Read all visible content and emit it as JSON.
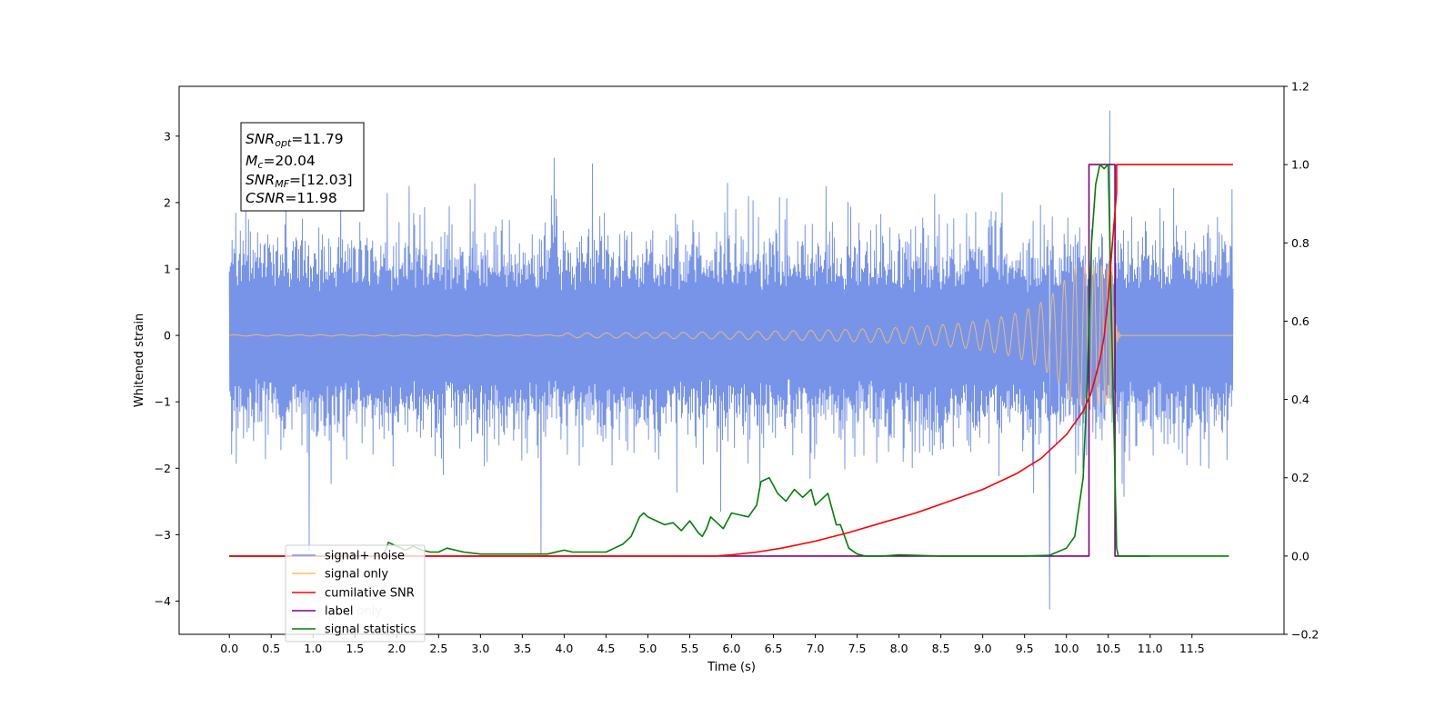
{
  "chart_data": {
    "type": "line",
    "xlabel": "Time (s)",
    "ylabel": "Whitened strain",
    "xlim": [
      -0.6,
      12.6
    ],
    "ylim_left": [
      -4.5,
      3.75
    ],
    "ylim_right": [
      -0.2,
      1.2
    ],
    "x_ticks": [
      0.0,
      0.5,
      1.0,
      1.5,
      2.0,
      2.5,
      3.0,
      3.5,
      4.0,
      4.5,
      5.0,
      5.5,
      6.0,
      6.5,
      7.0,
      7.5,
      8.0,
      8.5,
      9.0,
      9.5,
      10.0,
      10.5,
      11.0,
      11.5
    ],
    "x_tick_labels": [
      "0.0",
      "0.5",
      "1.0",
      "1.5",
      "2.0",
      "2.5",
      "3.0",
      "3.5",
      "4.0",
      "4.5",
      "5.0",
      "5.5",
      "6.0",
      "6.5",
      "7.0",
      "7.5",
      "8.0",
      "8.5",
      "9.0",
      "9.5",
      "10.0",
      "10.5",
      "11.0",
      "11.5"
    ],
    "y_ticks_left": [
      3,
      2,
      1,
      0,
      -1,
      -2,
      -3,
      -4
    ],
    "y_tick_labels_left": [
      "3",
      "2",
      "1",
      "0",
      "−1",
      "−2",
      "−3",
      "−4"
    ],
    "y_ticks_right": [
      1.2,
      1.0,
      0.8,
      0.6,
      0.4,
      0.2,
      0.0,
      -0.2
    ],
    "y_tick_labels_right": [
      "1.2",
      "1.0",
      "0.8",
      "0.6",
      "0.4",
      "0.2",
      "0.0",
      "−0.2"
    ],
    "grid": false,
    "legend_position": "lower-left",
    "annotation": {
      "lines": [
        {
          "main": "SNR",
          "sub": "opt",
          "rest": "=11.79"
        },
        {
          "main": "M",
          "sub": "c",
          "rest": "=20.04"
        },
        {
          "main": "SNR",
          "sub": "MF",
          "rest": "=[12.03]"
        },
        {
          "main": "CSNR",
          "sub": "",
          "rest": "=11.98"
        }
      ]
    },
    "series": [
      {
        "name": "signal+ noise",
        "axis": "left",
        "color": "#7894e8",
        "kind": "noise",
        "x_range": [
          0.0,
          11.99
        ],
        "amplitude_typical": 1.6,
        "max": 3.38,
        "max_at": 10.52,
        "min": -4.12,
        "min_at": 9.8
      },
      {
        "name": "signal only",
        "axis": "left",
        "color": "#ffbf66",
        "kind": "chirp",
        "x_range": [
          0.0,
          11.99
        ],
        "merger_time": 10.55,
        "peak_amplitude": 1.05,
        "ringdown_end": 10.65
      },
      {
        "name": "cumilative SNR",
        "axis": "right",
        "color": "#ff0000",
        "x": [
          0.0,
          5.8,
          6.0,
          6.3,
          6.6,
          7.0,
          7.4,
          7.8,
          8.2,
          8.6,
          9.0,
          9.4,
          9.7,
          10.0,
          10.2,
          10.3,
          10.4,
          10.45,
          10.5,
          10.55,
          10.6,
          10.6,
          11.99
        ],
        "y": [
          0.0,
          0.0,
          0.003,
          0.01,
          0.02,
          0.038,
          0.06,
          0.085,
          0.11,
          0.14,
          0.17,
          0.21,
          0.25,
          0.31,
          0.37,
          0.42,
          0.5,
          0.56,
          0.66,
          0.8,
          0.93,
          1.0,
          1.0
        ]
      },
      {
        "name": "label",
        "axis": "right",
        "color": "#800080",
        "x": [
          0.0,
          10.27,
          10.27,
          10.58,
          10.58,
          11.0
        ],
        "y": [
          0.0,
          0.0,
          1.0,
          1.0,
          0.0,
          0.0
        ]
      },
      {
        "name": "label only",
        "axis": "right",
        "color": "#800080",
        "hidden_in_plot": true
      },
      {
        "name": "signal statistics",
        "axis": "right",
        "color": "#008000",
        "x": [
          0.0,
          1.8,
          1.85,
          1.9,
          2.0,
          2.1,
          2.2,
          2.3,
          2.4,
          2.5,
          2.6,
          2.7,
          2.8,
          3.0,
          3.2,
          3.4,
          3.6,
          3.8,
          4.0,
          4.1,
          4.2,
          4.3,
          4.5,
          4.6,
          4.7,
          4.8,
          4.9,
          4.95,
          5.0,
          5.1,
          5.2,
          5.3,
          5.4,
          5.5,
          5.6,
          5.65,
          5.7,
          5.75,
          5.8,
          5.9,
          6.0,
          6.1,
          6.2,
          6.3,
          6.35,
          6.45,
          6.55,
          6.65,
          6.75,
          6.85,
          6.95,
          7.0,
          7.1,
          7.15,
          7.2,
          7.25,
          7.3,
          7.4,
          7.5,
          7.6,
          7.7,
          7.8,
          8.0,
          8.5,
          9.0,
          9.5,
          9.8,
          10.0,
          10.1,
          10.2,
          10.25,
          10.3,
          10.35,
          10.4,
          10.45,
          10.5,
          10.55,
          10.6,
          10.62,
          10.65,
          11.0,
          11.5,
          11.94
        ],
        "y": [
          0.0,
          0.0,
          0.005,
          0.035,
          0.025,
          0.015,
          0.025,
          0.015,
          0.01,
          0.01,
          0.02,
          0.015,
          0.01,
          0.005,
          0.005,
          0.005,
          0.005,
          0.005,
          0.015,
          0.01,
          0.01,
          0.01,
          0.01,
          0.02,
          0.03,
          0.05,
          0.1,
          0.11,
          0.1,
          0.09,
          0.08,
          0.085,
          0.065,
          0.09,
          0.06,
          0.05,
          0.07,
          0.1,
          0.09,
          0.07,
          0.11,
          0.105,
          0.1,
          0.13,
          0.19,
          0.2,
          0.16,
          0.14,
          0.17,
          0.15,
          0.17,
          0.13,
          0.15,
          0.16,
          0.12,
          0.08,
          0.08,
          0.02,
          0.005,
          0.0,
          0.0,
          0.0,
          0.003,
          0.0,
          0.0,
          0.0,
          0.002,
          0.02,
          0.05,
          0.2,
          0.45,
          0.8,
          0.95,
          1.0,
          0.99,
          1.0,
          0.5,
          0.02,
          0.0,
          0.0,
          0.0,
          0.0,
          0.0
        ]
      }
    ]
  }
}
